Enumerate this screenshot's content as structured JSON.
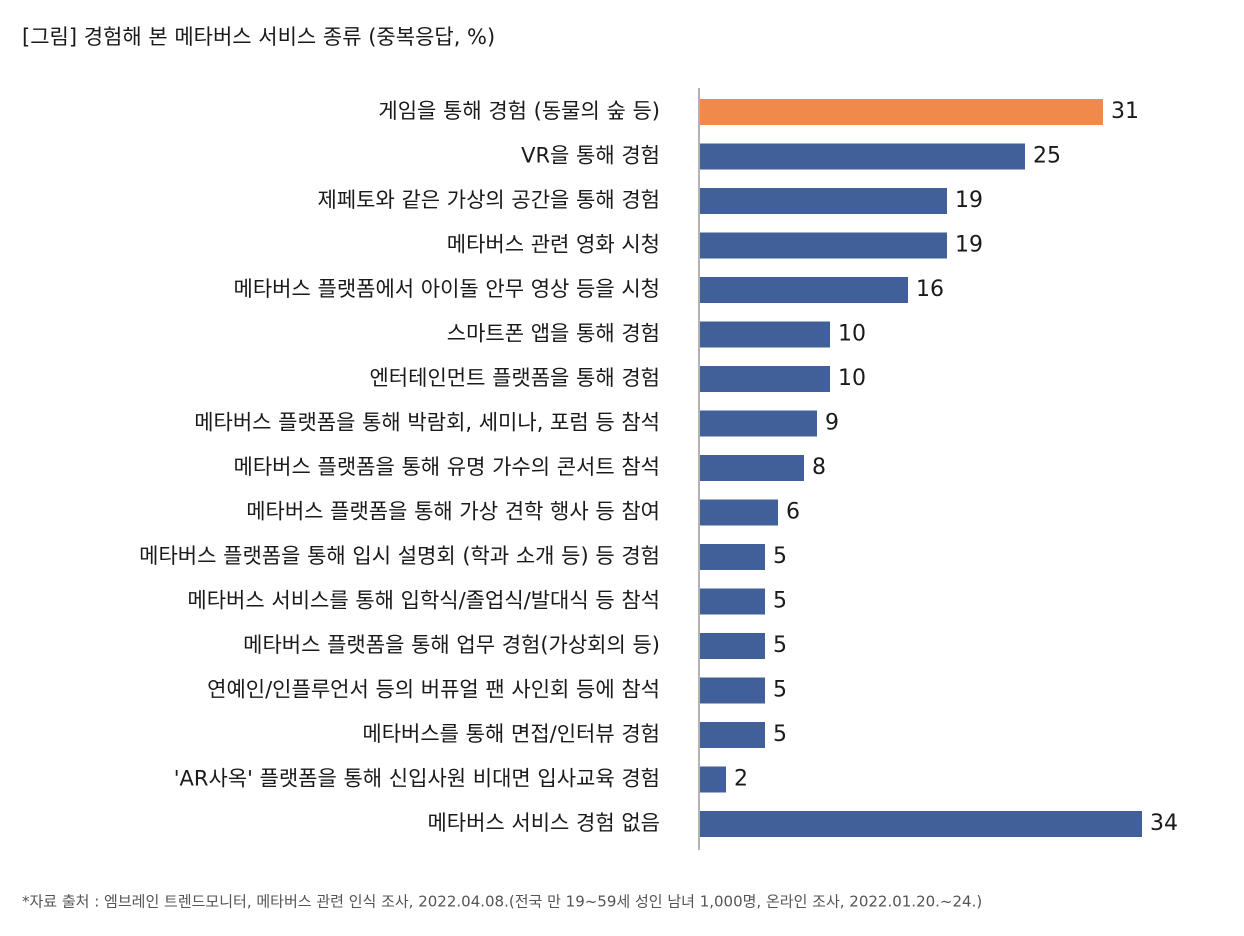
{
  "chart_data": {
    "type": "bar",
    "orientation": "horizontal",
    "title": "[그림] 경험해 본 메타버스 서비스 종류 (중복응답, %)",
    "categories": [
      "게임을 통해 경험 (동물의 숲 등)",
      "VR을 통해 경험",
      "제페토와 같은 가상의 공간을 통해 경험",
      "메타버스 관련 영화 시청",
      "메타버스 플랫폼에서 아이돌 안무 영상 등을 시청",
      "스마트폰 앱을 통해 경험",
      "엔터테인먼트 플랫폼을 통해 경험",
      "메타버스 플랫폼을 통해 박람회, 세미나, 포럼 등 참석",
      "메타버스 플랫폼을 통해 유명 가수의 콘서트 참석",
      "메타버스 플랫폼을 통해 가상 견학 행사 등 참여",
      "메타버스 플랫폼을 통해 입시 설명회 (학과 소개 등) 등 경험",
      "메타버스 서비스를 통해 입학식/졸업식/발대식 등 참석",
      "메타버스 플랫폼을 통해 업무 경험(가상회의 등)",
      "연예인/인플루언서 등의 버퓨얼 팬 사인회 등에 참석",
      "메타버스를 통해 면접/인터뷰 경험",
      "'AR사옥' 플랫폼을 통해 신입사원 비대면 입사교육 경험",
      "메타버스 서비스 경험 없음"
    ],
    "values": [
      31,
      25,
      19,
      19,
      16,
      10,
      10,
      9,
      8,
      6,
      5,
      5,
      5,
      5,
      5,
      2,
      34
    ],
    "colors": [
      "#f0894a",
      "#41609a",
      "#41609a",
      "#41609a",
      "#41609a",
      "#41609a",
      "#41609a",
      "#41609a",
      "#41609a",
      "#41609a",
      "#41609a",
      "#41609a",
      "#41609a",
      "#41609a",
      "#41609a",
      "#41609a",
      "#41609a"
    ],
    "footnote": "*자료 출처 : 엠브레인 트렌드모니터, 메타버스 관련 인식 조사, 2022.04.08.(전국 만 19~59세 성인 남녀 1,000명, 온라인 조사, 2022.01.20.~24.)"
  }
}
